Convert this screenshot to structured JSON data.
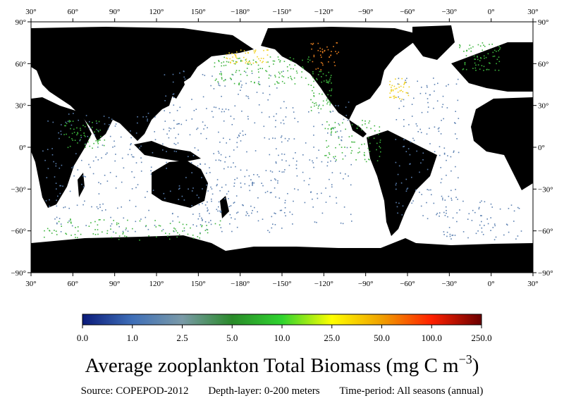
{
  "map": {
    "lon_ticks": [
      "30°",
      "60°",
      "90°",
      "120°",
      "150°",
      "−180°",
      "−150°",
      "−120°",
      "−90°",
      "−60°",
      "−30°",
      "0°",
      "30°"
    ],
    "lat_ticks": [
      "90°",
      "60°",
      "30°",
      "0°",
      "−30°",
      "−60°",
      "−90°"
    ],
    "colors": {
      "land": "#000000",
      "ocean": "#ffffff",
      "low": "#5a7fb0",
      "mid": "#3cb43c",
      "high": "#f0d020",
      "very_high": "#e88020"
    }
  },
  "colorbar": {
    "labels": [
      "0.0",
      "1.0",
      "2.5",
      "5.0",
      "10.0",
      "25.0",
      "50.0",
      "100.0",
      "250.0"
    ],
    "stops": [
      "#0a1a7a",
      "#3f6fb8",
      "#7a9aa8",
      "#2a8a2a",
      "#2fd42f",
      "#ffff00",
      "#f0a000",
      "#ff2000",
      "#6a0000"
    ]
  },
  "title": {
    "text": "Average zooplankton Total Biomass (mg C m",
    "sup": "−3",
    "close": ")"
  },
  "footer": {
    "source": "Source:  COPEPOD-2012",
    "depth": "Depth-layer: 0-200 meters",
    "time": "Time-period:  All seasons (annual)"
  }
}
